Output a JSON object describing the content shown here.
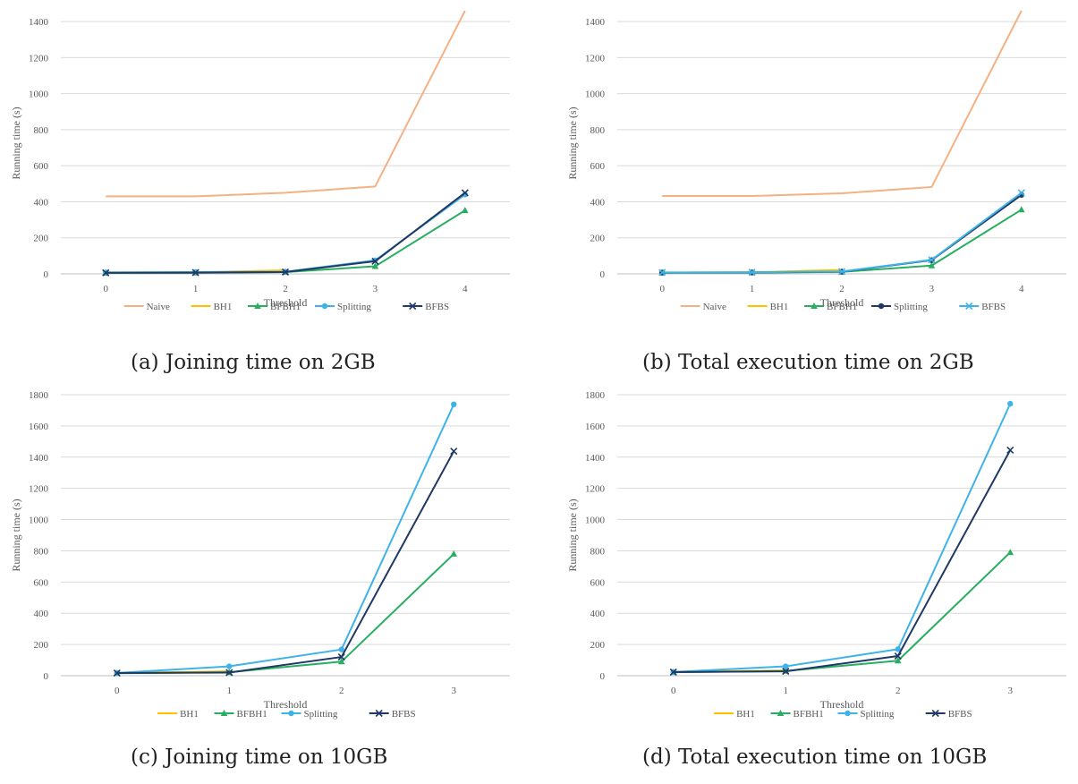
{
  "colors": {
    "naive": "#f4b183",
    "bh1": "#ffc000",
    "bfbh1": "#27ae60",
    "splitting": "#3fb3e8",
    "bfbs": "#1f3864",
    "grid": "#d9d9d9",
    "axis": "#bfbfbf",
    "text": "#595959"
  },
  "chart_data": [
    {
      "id": "a",
      "type": "line",
      "caption": "(a) Joining time on 2GB",
      "xlabel": "Threshold",
      "ylabel": "Running time (s)",
      "categories": [
        "0",
        "1",
        "2",
        "3",
        "4"
      ],
      "ylim": [
        0,
        1450
      ],
      "yticks": [
        0,
        200,
        400,
        600,
        800,
        1000,
        1200,
        1400
      ],
      "grid": true,
      "legend_position": "bottom",
      "series": [
        {
          "name": "Naive",
          "key": "naive",
          "marker": "none",
          "values": [
            430,
            430,
            450,
            485,
            1460
          ]
        },
        {
          "name": "BH1",
          "key": "bh1",
          "marker": "none",
          "values": [
            6,
            8,
            20,
            null,
            null
          ]
        },
        {
          "name": "BFBH1",
          "key": "bfbh1",
          "marker": "triangle",
          "values": [
            5,
            6,
            10,
            42,
            352
          ]
        },
        {
          "name": "Splitting",
          "key": "splitting",
          "marker": "circle",
          "values": [
            8,
            10,
            12,
            75,
            440
          ]
        },
        {
          "name": "BFBS",
          "key": "bfbs",
          "marker": "x",
          "values": [
            6,
            7,
            10,
            70,
            450
          ]
        }
      ]
    },
    {
      "id": "b",
      "type": "line",
      "caption": "(b) Total execution time on 2GB",
      "xlabel": "Threshold",
      "ylabel": "Running time (s)",
      "categories": [
        "0",
        "1",
        "2",
        "3",
        "4"
      ],
      "ylim": [
        0,
        1450
      ],
      "yticks": [
        0,
        200,
        400,
        600,
        800,
        1000,
        1200,
        1400
      ],
      "grid": true,
      "legend_position": "bottom",
      "series": [
        {
          "name": "Naive",
          "key": "naive",
          "marker": "none",
          "values": [
            432,
            432,
            447,
            482,
            1460
          ]
        },
        {
          "name": "BH1",
          "key": "bh1",
          "marker": "none",
          "values": [
            7,
            9,
            22,
            null,
            null
          ]
        },
        {
          "name": "BFBH1",
          "key": "bfbh1",
          "marker": "triangle",
          "values": [
            6,
            7,
            11,
            46,
            356
          ]
        },
        {
          "name": "Splitting",
          "key": "bfbs",
          "marker": "circle",
          "values": [
            7,
            8,
            12,
            76,
            438
          ]
        },
        {
          "name": "BFBS",
          "key": "splitting",
          "marker": "x",
          "values": [
            8,
            9,
            13,
            78,
            450
          ]
        }
      ]
    },
    {
      "id": "c",
      "type": "line",
      "caption": "(c) Joining time on 10GB",
      "xlabel": "Threshold",
      "ylabel": "Running time (s)",
      "categories": [
        "0",
        "1",
        "2",
        "3"
      ],
      "ylim": [
        0,
        1800
      ],
      "yticks": [
        0,
        200,
        400,
        600,
        800,
        1000,
        1200,
        1400,
        1600,
        1800
      ],
      "grid": true,
      "legend_position": "bottom",
      "series": [
        {
          "name": "BH1",
          "key": "bh1",
          "marker": "none",
          "values": [
            18,
            28,
            null,
            null
          ]
        },
        {
          "name": "BFBH1",
          "key": "bfbh1",
          "marker": "triangle",
          "values": [
            16,
            22,
            90,
            780
          ]
        },
        {
          "name": "Splitting",
          "key": "splitting",
          "marker": "circle",
          "values": [
            18,
            60,
            168,
            1738
          ]
        },
        {
          "name": "BFBS",
          "key": "bfbs",
          "marker": "x",
          "values": [
            17,
            20,
            120,
            1438
          ]
        }
      ]
    },
    {
      "id": "d",
      "type": "line",
      "caption": "(d) Total execution time on 10GB",
      "xlabel": "Threshold",
      "ylabel": "Running time (s)",
      "categories": [
        "0",
        "1",
        "2",
        "3"
      ],
      "ylim": [
        0,
        1800
      ],
      "yticks": [
        0,
        200,
        400,
        600,
        800,
        1000,
        1200,
        1400,
        1600,
        1800
      ],
      "grid": true,
      "legend_position": "bottom",
      "series": [
        {
          "name": "BH1",
          "key": "bh1",
          "marker": "none",
          "values": [
            24,
            34,
            null,
            null
          ]
        },
        {
          "name": "BFBH1",
          "key": "bfbh1",
          "marker": "triangle",
          "values": [
            22,
            30,
            96,
            790
          ]
        },
        {
          "name": "Splitting",
          "key": "splitting",
          "marker": "circle",
          "values": [
            24,
            60,
            170,
            1742
          ]
        },
        {
          "name": "BFBS",
          "key": "bfbs",
          "marker": "x",
          "values": [
            23,
            28,
            126,
            1445
          ]
        }
      ]
    }
  ]
}
